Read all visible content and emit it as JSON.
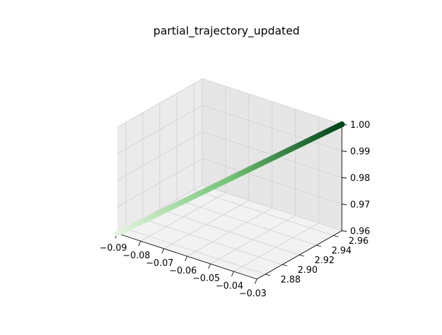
{
  "chart_data": {
    "type": "scatter3d",
    "title": "partial_trajectory_updated",
    "xlabel": "",
    "ylabel": "",
    "zlabel": "",
    "xlim": [
      -0.09,
      -0.03
    ],
    "ylim": [
      2.87,
      2.97
    ],
    "zlim": [
      0.96,
      1.0
    ],
    "x_ticks": [
      "−0.09",
      "−0.08",
      "−0.07",
      "−0.06",
      "−0.05",
      "−0.04",
      "−0.03"
    ],
    "y_ticks": [
      "2.88",
      "2.90",
      "2.92",
      "2.94",
      "2.96"
    ],
    "z_ticks": [
      "0.96",
      "0.97",
      "0.98",
      "0.99",
      "1.00"
    ],
    "grid": true,
    "colormap": "Greens",
    "color_light": "#e5f5e0",
    "color_mid": "#74c476",
    "color_dark": "#00441b",
    "pane_colors": {
      "floor": "#f2f2f2",
      "left_wall": "#ebebeb",
      "back_wall": "#e6e6e6"
    },
    "trajectory": {
      "start": {
        "x": -0.09,
        "y": 2.87,
        "z": 0.96
      },
      "end": {
        "x": -0.03,
        "y": 2.97,
        "z": 1.0
      },
      "points": 120
    }
  }
}
